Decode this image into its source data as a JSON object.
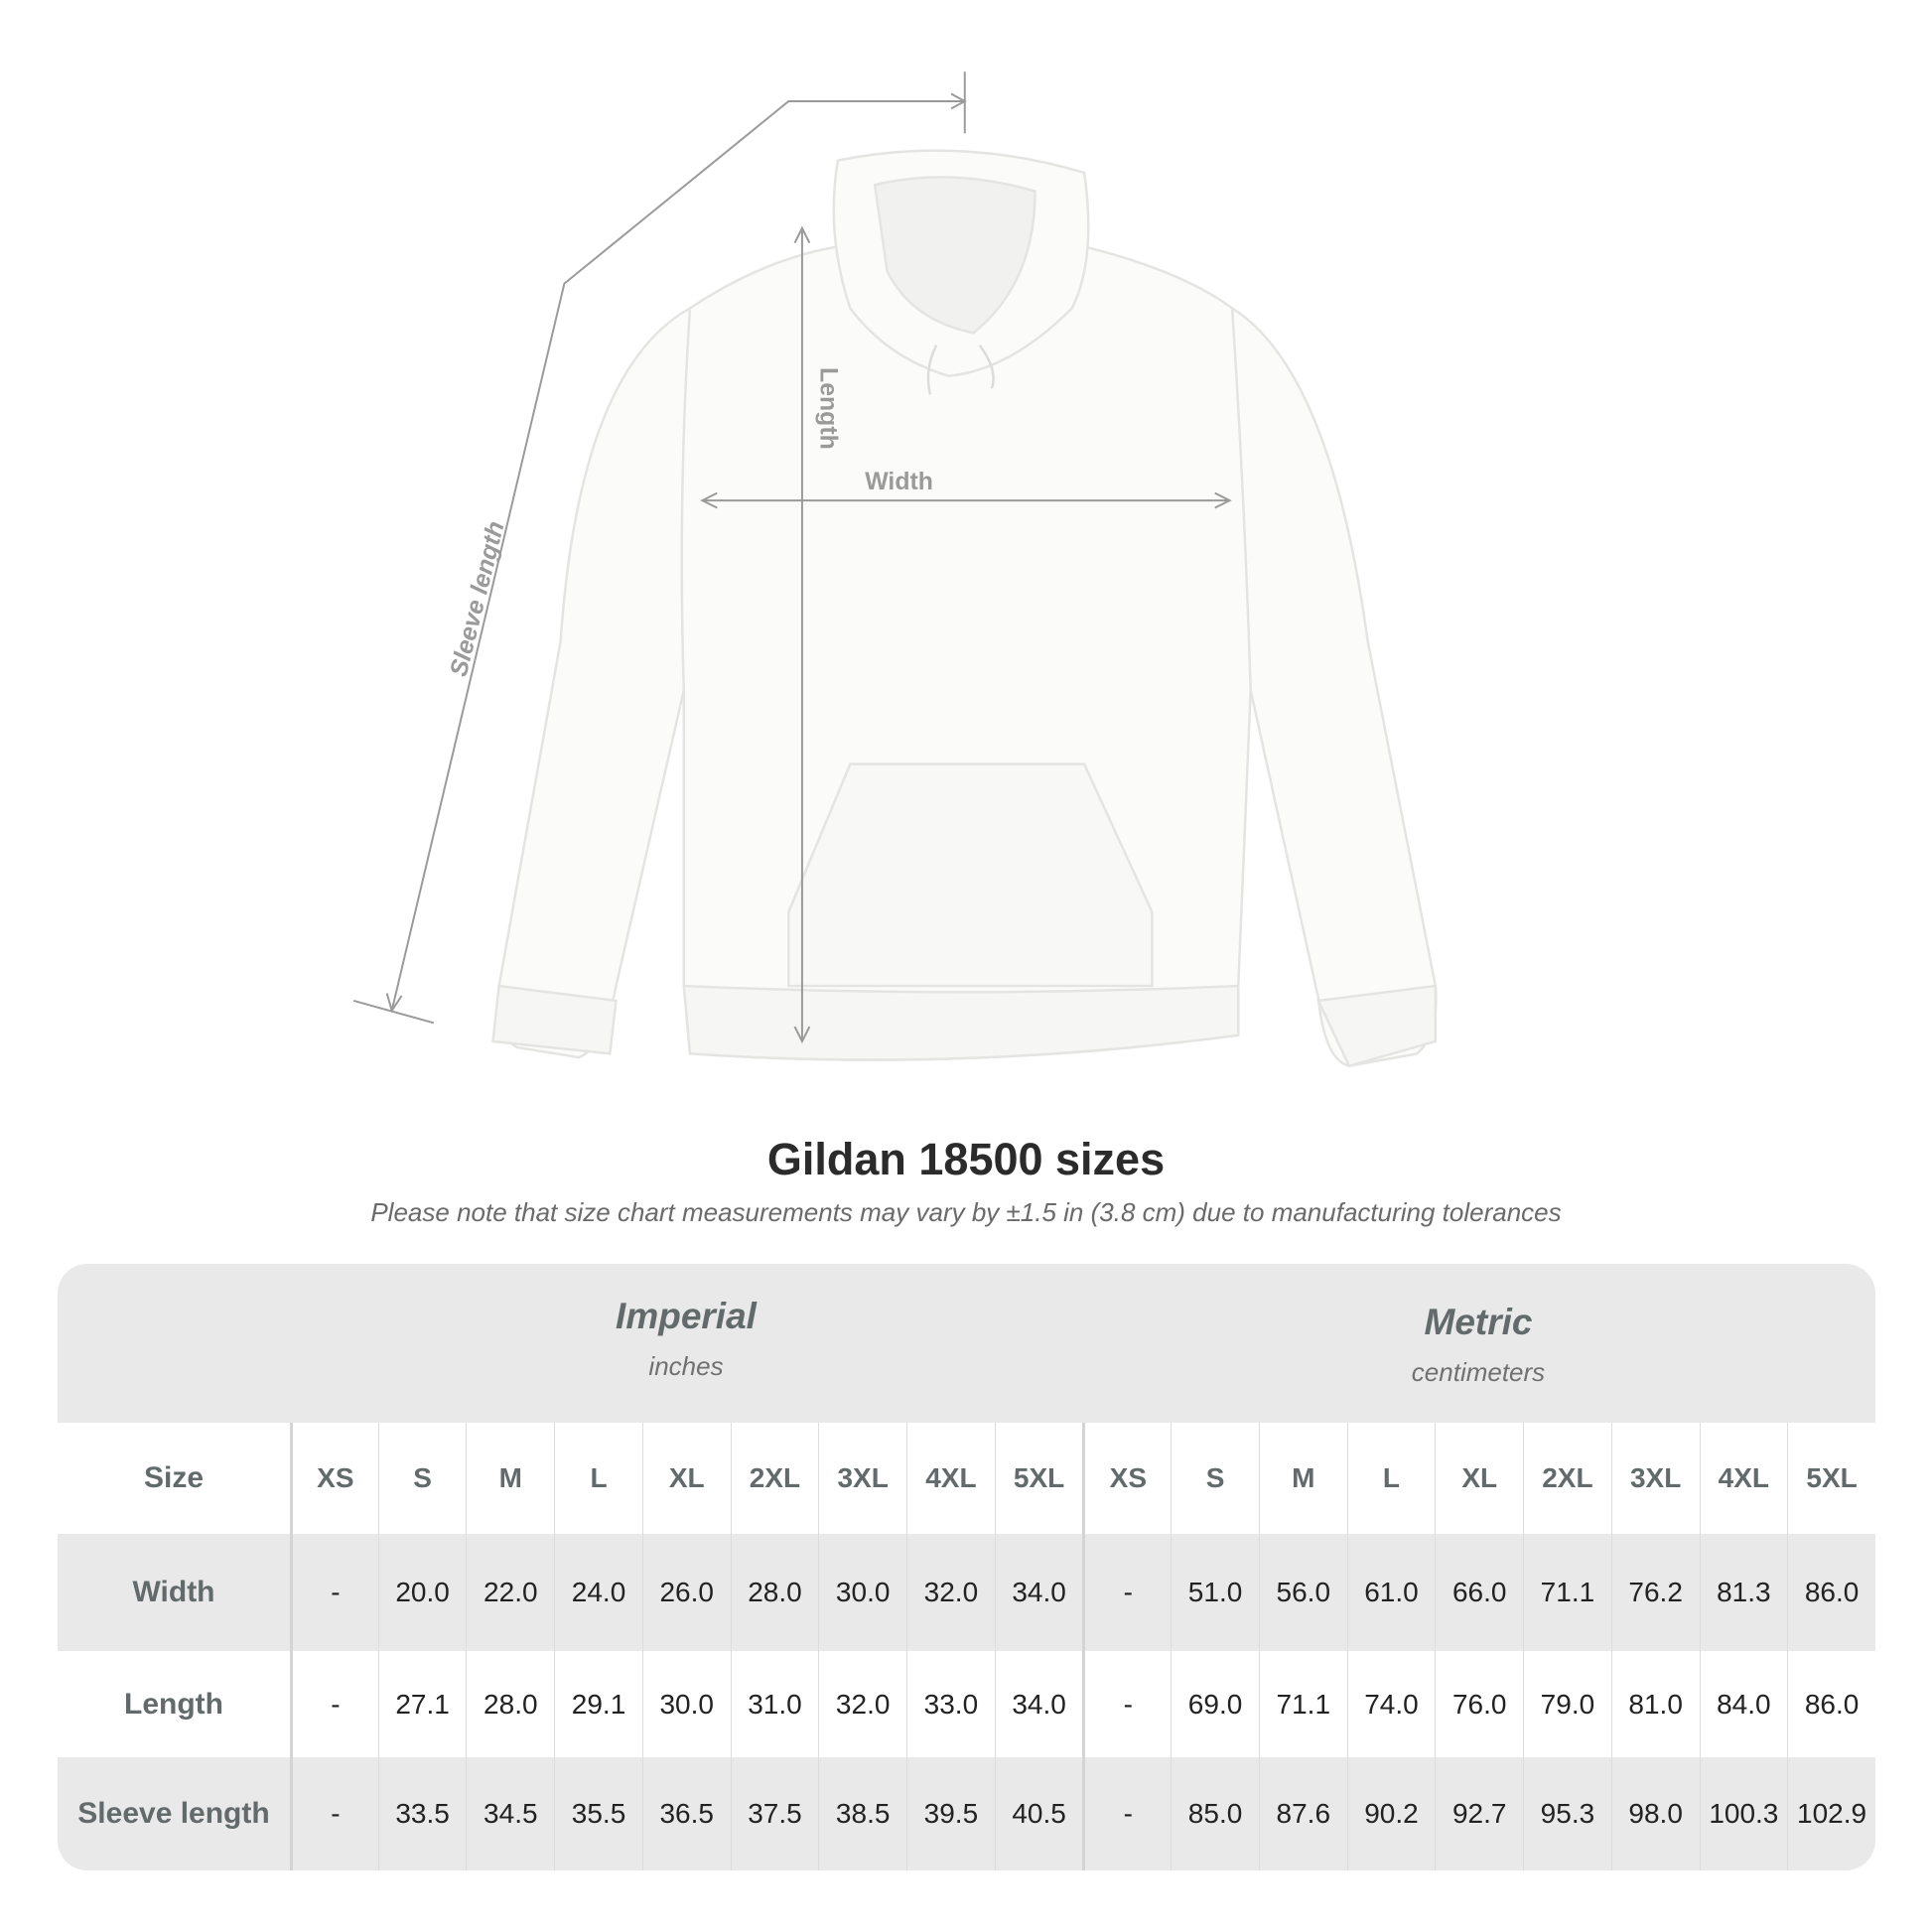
{
  "diagram": {
    "labels": {
      "sleeve": "Sleeve length",
      "length": "Length",
      "width": "Width"
    },
    "line_color": "#9a9a9a"
  },
  "title": "Gildan 18500 sizes",
  "note": "Please note that size chart measurements may vary by ±1.5 in (3.8 cm) due to manufacturing tolerances",
  "table": {
    "imperial": {
      "name": "Imperial",
      "unit": "inches"
    },
    "metric": {
      "name": "Metric",
      "unit": "centimeters"
    },
    "size_label": "Size",
    "sizes": [
      "XS",
      "S",
      "M",
      "L",
      "XL",
      "2XL",
      "3XL",
      "4XL",
      "5XL"
    ],
    "rows": [
      {
        "label": "Width",
        "imperial": [
          "-",
          "20.0",
          "22.0",
          "24.0",
          "26.0",
          "28.0",
          "30.0",
          "32.0",
          "34.0"
        ],
        "metric": [
          "-",
          "51.0",
          "56.0",
          "61.0",
          "66.0",
          "71.1",
          "76.2",
          "81.3",
          "86.0"
        ]
      },
      {
        "label": "Length",
        "imperial": [
          "-",
          "27.1",
          "28.0",
          "29.1",
          "30.0",
          "31.0",
          "32.0",
          "33.0",
          "34.0"
        ],
        "metric": [
          "-",
          "69.0",
          "71.1",
          "74.0",
          "76.0",
          "79.0",
          "81.0",
          "84.0",
          "86.0"
        ]
      },
      {
        "label": "Sleeve length",
        "imperial": [
          "-",
          "33.5",
          "34.5",
          "35.5",
          "36.5",
          "37.5",
          "38.5",
          "39.5",
          "40.5"
        ],
        "metric": [
          "-",
          "85.0",
          "87.6",
          "90.2",
          "92.7",
          "95.3",
          "98.0",
          "100.3",
          "102.9"
        ]
      }
    ],
    "colors": {
      "band": "#e9e9e9",
      "label": "#636a6b"
    }
  }
}
